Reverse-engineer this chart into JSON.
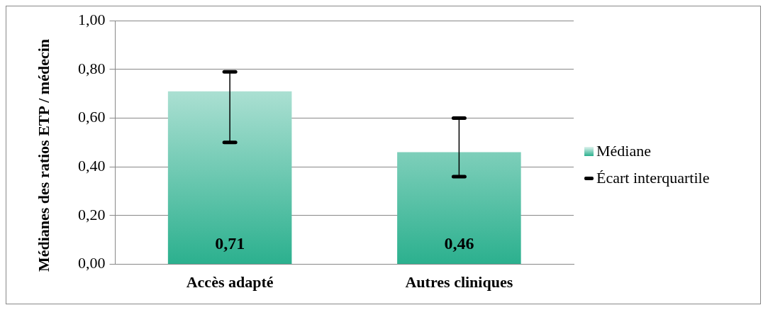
{
  "chart_data": {
    "type": "bar",
    "ylabel": "Médianes des ratios ETP / médecin",
    "categories": [
      "Accès adapté",
      "Autres cliniques"
    ],
    "series": [
      {
        "name": "Médiane",
        "color": "#2bb08e",
        "values": [
          0.71,
          0.46
        ],
        "errors": [
          [
            0.5,
            0.79
          ],
          [
            0.36,
            0.6
          ]
        ],
        "value_labels": [
          "0,71",
          "0,46"
        ]
      }
    ],
    "ylim": [
      0,
      1
    ],
    "yticks": [
      {
        "value": 0,
        "label": "0,00"
      },
      {
        "value": 0.2,
        "label": "0,20"
      },
      {
        "value": 0.4,
        "label": "0,40"
      },
      {
        "value": 0.6,
        "label": "0,60"
      },
      {
        "value": 0.8,
        "label": "0,80"
      },
      {
        "value": 1,
        "label": "1,00"
      }
    ],
    "grid": "y",
    "legend": "right",
    "annotations": [
      "Écart interquartile"
    ]
  }
}
